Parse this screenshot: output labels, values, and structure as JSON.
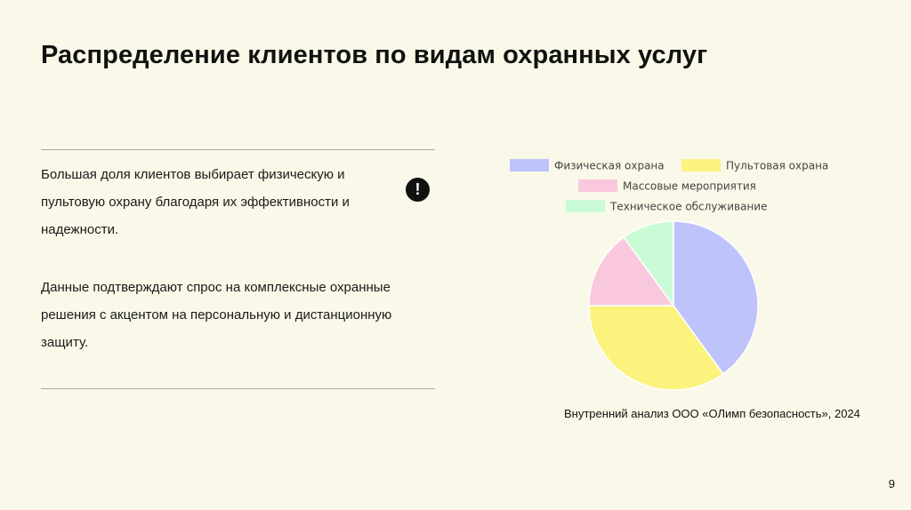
{
  "slide": {
    "title": "Распределение клиентов по видам охранных услуг",
    "paragraph_1": "Большая доля клиентов выбирает физическую и пультовую охрану благодаря их эффективности и надежности.",
    "paragraph_2": "Данные подтверждают спрос на комплексные охранные решения с акцентом на персональную и дистанционную защиту.",
    "alert_icon_glyph": "!",
    "source": "Внутренний анализ ООО «ОЛимп безопасность», 2024",
    "page_number": "9"
  },
  "chart_data": {
    "type": "pie",
    "title": "",
    "legend_position": "top",
    "labels": [
      "Физическая охрана",
      "Пультовая охрана",
      "Массовые мероприятия",
      "Техническое обслуживание"
    ],
    "values": [
      40,
      35,
      15,
      10
    ],
    "colors": [
      "#bfc3fb",
      "#fbf37d",
      "#fac8dd",
      "#c9fbd6"
    ]
  }
}
